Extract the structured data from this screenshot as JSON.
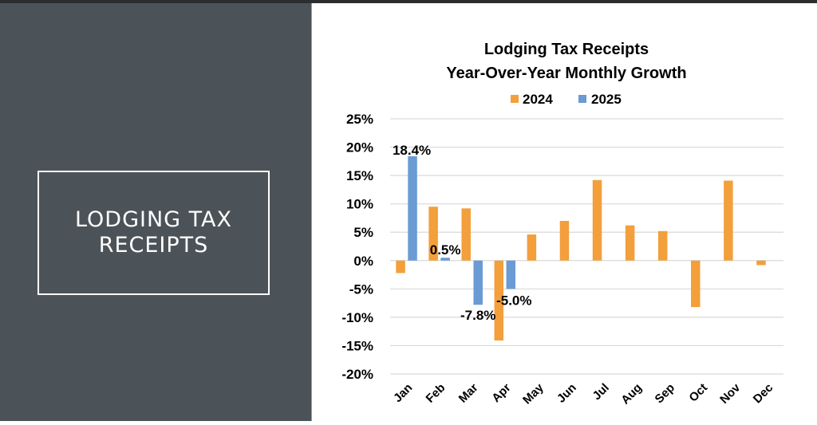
{
  "slide": {
    "section_title": "LODGING TAX\nRECEIPTS",
    "colors": {
      "panel_background": "#4c5358",
      "panel_text": "#ffffff"
    }
  },
  "chart_data": {
    "type": "bar",
    "title": "Lodging Tax Receipts",
    "subtitle": "Year-Over-Year Monthly Growth",
    "xlabel": "",
    "ylabel": "",
    "categories": [
      "Jan",
      "Feb",
      "Mar",
      "Apr",
      "May",
      "Jun",
      "Jul",
      "Aug",
      "Sep",
      "Oct",
      "Nov",
      "Dec"
    ],
    "series": [
      {
        "name": "2024",
        "color": "#f39f3b",
        "values": [
          -2.2,
          9.5,
          9.2,
          -14.1,
          4.6,
          7.0,
          14.2,
          6.2,
          5.2,
          -8.2,
          14.1,
          -0.8
        ],
        "data_labels": [
          null,
          null,
          null,
          null,
          null,
          null,
          null,
          null,
          null,
          null,
          null,
          null
        ]
      },
      {
        "name": "2025",
        "color": "#6a9bd4",
        "values": [
          18.4,
          0.5,
          -7.8,
          -5.0,
          null,
          null,
          null,
          null,
          null,
          null,
          null,
          null
        ],
        "data_labels": [
          "18.4%",
          "0.5%",
          "-7.8%",
          "-5.0%",
          null,
          null,
          null,
          null,
          null,
          null,
          null,
          null
        ]
      }
    ],
    "ylim": [
      -20,
      25
    ],
    "yticks": [
      25,
      20,
      15,
      10,
      5,
      0,
      -5,
      -10,
      -15,
      -20
    ],
    "ytick_labels": [
      "25%",
      "20%",
      "15%",
      "10%",
      "5%",
      "0%",
      "-5%",
      "-10%",
      "-15%",
      "-20%"
    ],
    "grid": true,
    "legend": "top-center",
    "xtick_rotation": "diagonal"
  }
}
